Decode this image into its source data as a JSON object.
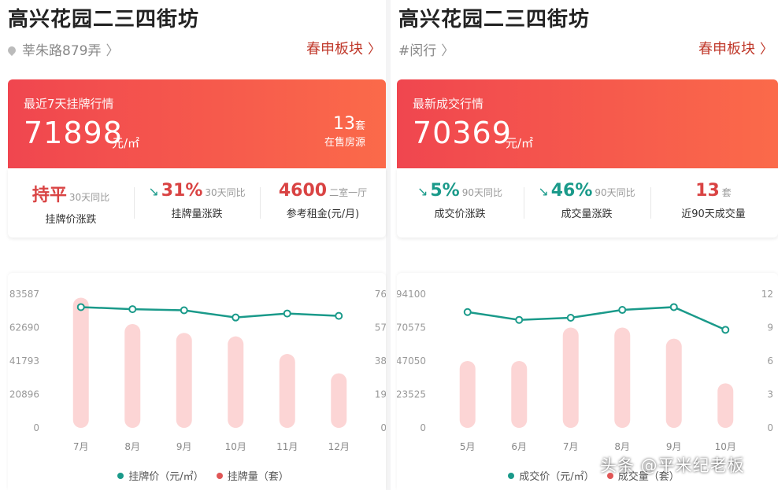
{
  "left": {
    "title": "高兴花园二三四街坊",
    "subtitle": "莘朱路879弄",
    "block_link": "春申板块",
    "banner": {
      "label": "最近7天挂牌行情",
      "price": "71898",
      "unit": "元/㎡",
      "count": "13",
      "count_unit": "套",
      "count_label": "在售房源"
    },
    "stats": [
      {
        "value": "持平",
        "compare": "30天同比",
        "desc": "挂牌价涨跌",
        "arrow": ""
      },
      {
        "value": "31%",
        "compare": "30天同比",
        "desc": "挂牌量涨跌",
        "arrow": "↘"
      },
      {
        "value": "4600",
        "compare": "二室一厅",
        "desc": "参考租金(元/月)",
        "arrow": ""
      }
    ],
    "legend": {
      "line": "挂牌价（元/㎡）",
      "bar": "挂牌量（套）"
    }
  },
  "right": {
    "title": "高兴花园二三四街坊",
    "subtitle": "#闵行",
    "block_link": "春申板块",
    "banner": {
      "label": "最新成交行情",
      "price": "70369",
      "unit": "元/㎡"
    },
    "stats": [
      {
        "value": "5%",
        "compare": "90天同比",
        "desc": "成交价涨跌",
        "arrow": "↘"
      },
      {
        "value": "46%",
        "compare": "90天同比",
        "desc": "成交量涨跌",
        "arrow": "↘"
      },
      {
        "value": "13",
        "compare": "套",
        "desc": "近90天成交量",
        "arrow": ""
      }
    ],
    "legend": {
      "line": "成交价（元/㎡）",
      "bar": "成交量（套）"
    }
  },
  "watermark": "头条 @平米纪老板",
  "colors": {
    "accent_red": "#f0464f",
    "teal": "#1a9a8a",
    "bar_pink": "#fbd3d3",
    "legend_red": "#e05656"
  },
  "chart_data": [
    {
      "type": "bar",
      "categories": [
        "7月",
        "8月",
        "9月",
        "10月",
        "11月",
        "12月"
      ],
      "y_left_ticks": [
        "83587",
        "62690",
        "41793",
        "20896",
        "0"
      ],
      "y_right_ticks": [
        "76",
        "57",
        "38",
        "19",
        "0"
      ],
      "y_left_range": [
        0,
        83587
      ],
      "y_right_range": [
        0,
        76
      ],
      "series": [
        {
          "name": "挂牌价（元/㎡）",
          "type": "line",
          "axis": "left",
          "values": [
            75500,
            74200,
            73500,
            69000,
            71500,
            70000
          ]
        },
        {
          "name": "挂牌量（套）",
          "type": "bar",
          "axis": "right",
          "values": [
            74,
            59,
            54,
            52,
            42,
            31
          ]
        }
      ]
    },
    {
      "type": "bar",
      "categories": [
        "5月",
        "6月",
        "7月",
        "8月",
        "9月",
        "10月"
      ],
      "y_left_ticks": [
        "94100",
        "70575",
        "47050",
        "23525",
        "0"
      ],
      "y_right_ticks": [
        "12",
        "9",
        "6",
        "3",
        "0"
      ],
      "y_left_range": [
        0,
        94100
      ],
      "y_right_range": [
        0,
        12
      ],
      "series": [
        {
          "name": "成交价（元/㎡）",
          "type": "line",
          "axis": "left",
          "values": [
            81500,
            76000,
            77500,
            83000,
            85000,
            69000
          ]
        },
        {
          "name": "成交量（套）",
          "type": "bar",
          "axis": "right",
          "values": [
            6,
            6,
            9,
            9,
            8,
            4
          ]
        }
      ]
    }
  ]
}
